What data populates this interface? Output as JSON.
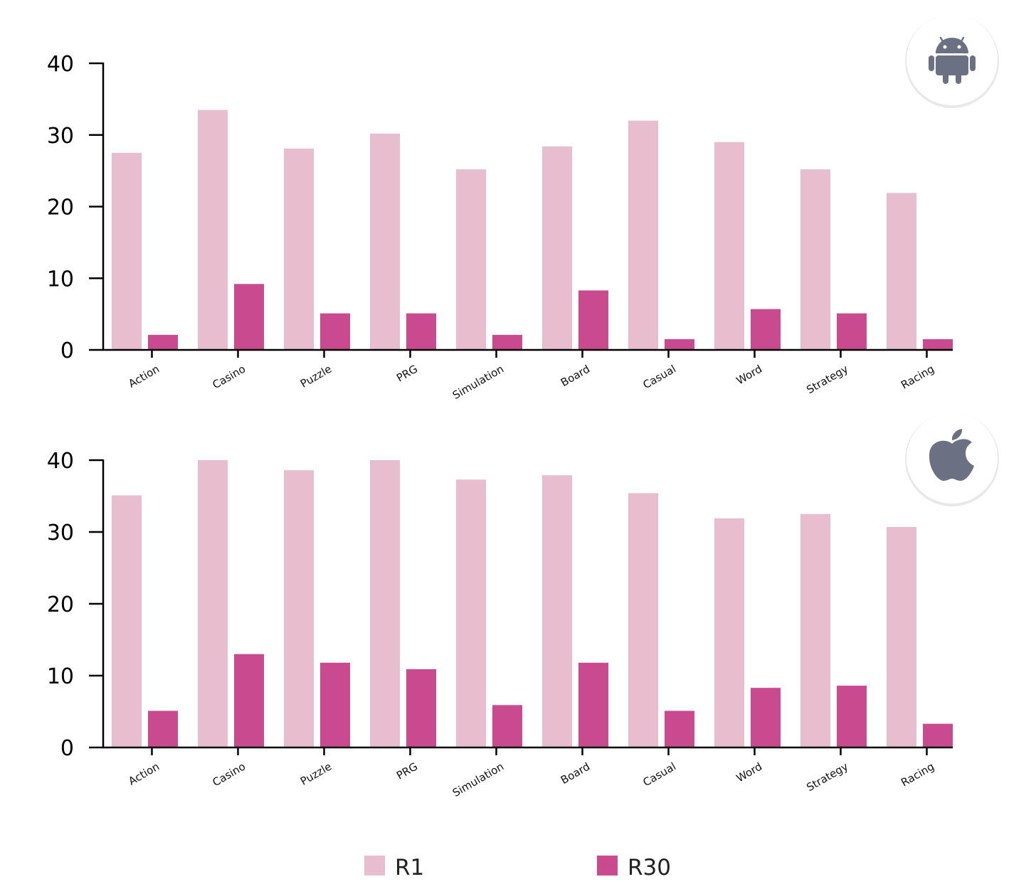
{
  "colors": {
    "r1": "#e8bece",
    "r30": "#c94a8e",
    "axis": "#000000",
    "badge_icon": "#6b7082",
    "badge_bg": "#ffffff",
    "badge_shadow": "#d9d9d9"
  },
  "legend": {
    "items": [
      {
        "label": "R1",
        "color": "#e8bece"
      },
      {
        "label": "R30",
        "color": "#c94a8e"
      }
    ]
  },
  "chart_data": [
    {
      "type": "bar",
      "platform_icon": "android-icon",
      "categories": [
        "Action",
        "Casino",
        "Puzzle",
        "PRG",
        "Simulation",
        "Board",
        "Casual",
        "Word",
        "Strategy",
        "Racing"
      ],
      "series": [
        {
          "name": "R1",
          "values": [
            27.5,
            33.5,
            28.1,
            30.2,
            25.2,
            28.4,
            32.0,
            29.0,
            25.2,
            21.9
          ]
        },
        {
          "name": "R30",
          "values": [
            2.1,
            9.2,
            5.1,
            5.1,
            2.1,
            8.3,
            1.5,
            5.7,
            5.1,
            1.5
          ]
        }
      ],
      "ylim": [
        0,
        40
      ],
      "yticks": [
        "0",
        "10",
        "20",
        "30",
        "40"
      ],
      "xlabel": "",
      "ylabel": "",
      "grid": false
    },
    {
      "type": "bar",
      "platform_icon": "apple-icon",
      "categories": [
        "Action",
        "Casino",
        "Puzzle",
        "PRG",
        "Simulation",
        "Board",
        "Casual",
        "Word",
        "Strategy",
        "Racing"
      ],
      "series": [
        {
          "name": "R1",
          "values": [
            35.1,
            40.0,
            38.6,
            40.0,
            37.3,
            37.9,
            35.4,
            31.9,
            32.5,
            30.7
          ]
        },
        {
          "name": "R30",
          "values": [
            5.1,
            13.0,
            11.8,
            10.9,
            5.9,
            11.8,
            5.1,
            8.3,
            8.6,
            3.3
          ]
        }
      ],
      "ylim": [
        0,
        40
      ],
      "yticks": [
        "0",
        "10",
        "20",
        "30",
        "40"
      ],
      "xlabel": "",
      "ylabel": "",
      "grid": false
    }
  ]
}
